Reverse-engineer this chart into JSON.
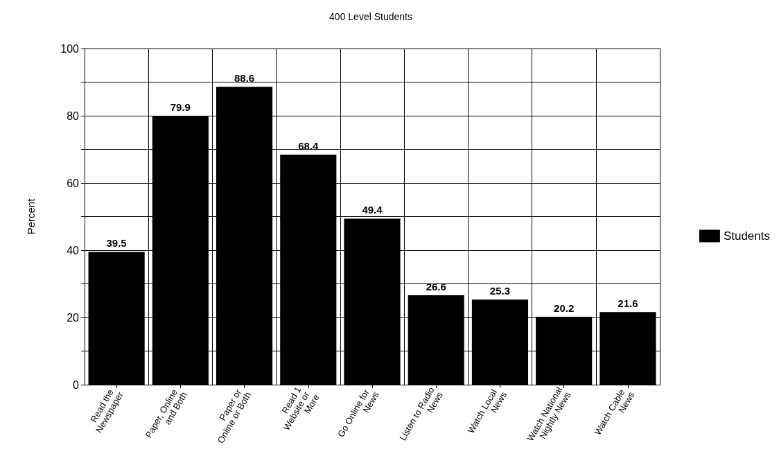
{
  "chart_data": {
    "type": "bar",
    "title": "400 Level Students",
    "ylabel": "Percent",
    "categories": [
      "Read the Newspaper",
      "Paper, Online and Both",
      "Paper or Online or Both",
      "Read 1 Website or More",
      "Go Online for News",
      "Listen to Radio News",
      "Watch Local News",
      "Watch National Nightly News",
      "Watch Cable News"
    ],
    "series": [
      {
        "name": "Students",
        "color": "#000000",
        "values": [
          39.5,
          79.9,
          88.6,
          68.4,
          49.4,
          26.6,
          25.3,
          20.2,
          21.6
        ]
      }
    ],
    "ylim": [
      0,
      100
    ],
    "yticks": [
      0,
      {
        "value": 10,
        "label": null
      },
      20,
      {
        "value": 30,
        "label": null
      },
      40,
      {
        "value": 50,
        "label": null
      },
      60,
      {
        "value": 70,
        "label": null
      },
      80,
      {
        "value": 90,
        "label": null
      },
      100
    ],
    "grid": true,
    "legend": "right",
    "data_labels": true
  }
}
